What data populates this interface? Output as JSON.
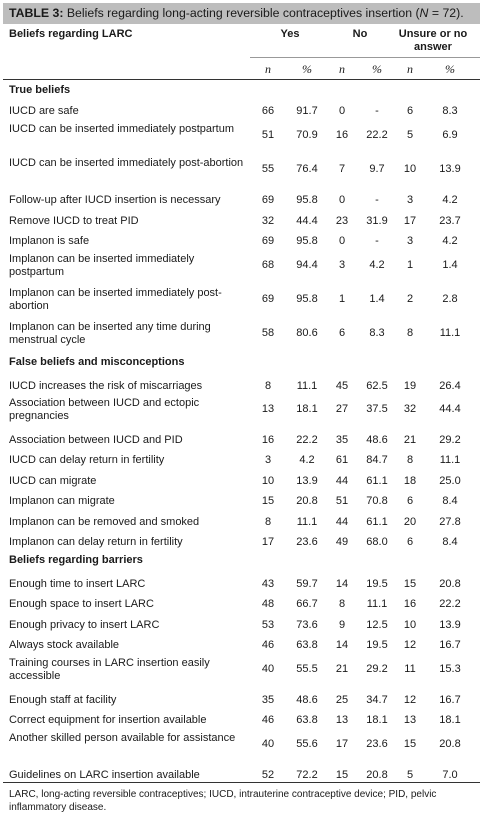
{
  "title": {
    "label": "TABLE 3:",
    "text": " Beliefs regarding long-acting reversible contraceptives insertion (",
    "n_symbol": "N",
    "n_value": " = 72)."
  },
  "header": {
    "first_col": "Beliefs regarding LARC",
    "groups": [
      "Yes",
      "No",
      "Unsure or no",
      "answer"
    ],
    "sub": [
      "n",
      "%",
      "n",
      "%",
      "n",
      "%"
    ]
  },
  "sections": [
    {
      "title": "True beliefs",
      "rows": [
        [
          "IUCD are safe",
          "66",
          "91.7",
          "0",
          "-",
          "6",
          "8.3"
        ],
        [
          "IUCD can be inserted immediately postpartum",
          "51",
          "70.9",
          "16",
          "22.2",
          "5",
          "6.9"
        ],
        [
          "IUCD can be inserted immediately post-abortion",
          "55",
          "76.4",
          "7",
          "9.7",
          "10",
          "13.9"
        ],
        [
          "Follow-up after IUCD insertion is necessary",
          "69",
          "95.8",
          "0",
          "-",
          "3",
          "4.2"
        ],
        [
          "Remove IUCD to treat PID",
          "32",
          "44.4",
          "23",
          "31.9",
          "17",
          "23.7"
        ],
        [
          "Implanon is safe",
          "69",
          "95.8",
          "0",
          "-",
          "3",
          "4.2"
        ],
        [
          "Implanon can be inserted immediately postpartum",
          "68",
          "94.4",
          "3",
          "4.2",
          "1",
          "1.4"
        ],
        [
          "Implanon can be inserted immediately post-abortion",
          "69",
          "95.8",
          "1",
          "1.4",
          "2",
          "2.8"
        ],
        [
          "Implanon can be inserted any time during menstrual cycle",
          "58",
          "80.6",
          "6",
          "8.3",
          "8",
          "11.1"
        ]
      ]
    },
    {
      "title": "False beliefs and misconceptions",
      "rows": [
        [
          "IUCD increases the risk of miscarriages",
          "8",
          "11.1",
          "45",
          "62.5",
          "19",
          "26.4"
        ],
        [
          "Association between IUCD and ectopic pregnancies",
          "13",
          "18.1",
          "27",
          "37.5",
          "32",
          "44.4"
        ],
        [
          "Association between IUCD and PID",
          "16",
          "22.2",
          "35",
          "48.6",
          "21",
          "29.2"
        ],
        [
          "IUCD can delay return in fertility",
          "3",
          "4.2",
          "61",
          "84.7",
          "8",
          "11.1"
        ],
        [
          "IUCD can migrate",
          "10",
          "13.9",
          "44",
          "61.1",
          "18",
          "25.0"
        ],
        [
          "Implanon can migrate",
          "15",
          "20.8",
          "51",
          "70.8",
          "6",
          "8.4"
        ],
        [
          "Implanon can be removed and smoked",
          "8",
          "11.1",
          "44",
          "61.1",
          "20",
          "27.8"
        ],
        [
          "Implanon can delay return in fertility",
          "17",
          "23.6",
          "49",
          "68.0",
          "6",
          "8.4"
        ]
      ]
    },
    {
      "title": "Beliefs regarding barriers",
      "rows": [
        [
          "Enough time to insert LARC",
          "43",
          "59.7",
          "14",
          "19.5",
          "15",
          "20.8"
        ],
        [
          "Enough space to insert LARC",
          "48",
          "66.7",
          "8",
          "11.1",
          "16",
          "22.2"
        ],
        [
          "Enough privacy to insert LARC",
          "53",
          "73.6",
          "9",
          "12.5",
          "10",
          "13.9"
        ],
        [
          "Always stock available",
          "46",
          "63.8",
          "14",
          "19.5",
          "12",
          "16.7"
        ],
        [
          "Training courses in LARC insertion easily accessible",
          "40",
          "55.5",
          "21",
          "29.2",
          "11",
          "15.3"
        ],
        [
          "Enough staff at facility",
          "35",
          "48.6",
          "25",
          "34.7",
          "12",
          "16.7"
        ],
        [
          "Correct equipment for insertion available",
          "46",
          "63.8",
          "13",
          "18.1",
          "13",
          "18.1"
        ],
        [
          "Another skilled person available for assistance",
          "40",
          "55.6",
          "17",
          "23.6",
          "15",
          "20.8"
        ],
        [
          "Guidelines on LARC insertion available",
          "52",
          "72.2",
          "15",
          "20.8",
          "5",
          "7.0"
        ]
      ]
    }
  ],
  "footnote": "LARC, long-acting reversible contraceptives; IUCD, intrauterine contraceptive device; PID, pelvic inflammatory disease."
}
